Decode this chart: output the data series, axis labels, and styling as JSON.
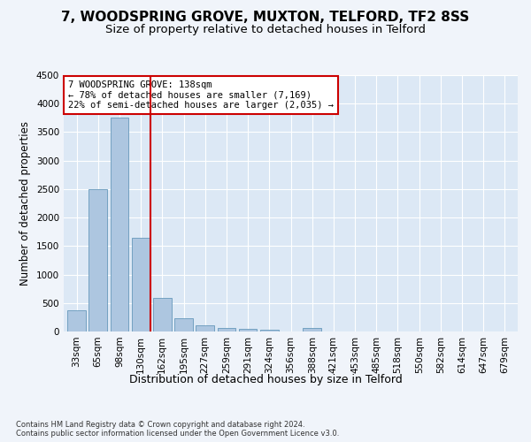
{
  "title1": "7, WOODSPRING GROVE, MUXTON, TELFORD, TF2 8SS",
  "title2": "Size of property relative to detached houses in Telford",
  "xlabel": "Distribution of detached houses by size in Telford",
  "ylabel": "Number of detached properties",
  "footnote": "Contains HM Land Registry data © Crown copyright and database right 2024.\nContains public sector information licensed under the Open Government Licence v3.0.",
  "categories": [
    "33sqm",
    "65sqm",
    "98sqm",
    "130sqm",
    "162sqm",
    "195sqm",
    "227sqm",
    "259sqm",
    "291sqm",
    "324sqm",
    "356sqm",
    "388sqm",
    "421sqm",
    "453sqm",
    "485sqm",
    "518sqm",
    "550sqm",
    "582sqm",
    "614sqm",
    "647sqm",
    "679sqm"
  ],
  "values": [
    370,
    2500,
    3750,
    1640,
    590,
    230,
    110,
    65,
    40,
    35,
    0,
    55,
    0,
    0,
    0,
    0,
    0,
    0,
    0,
    0,
    0
  ],
  "bar_color": "#adc6e0",
  "bar_edge_color": "#6699bb",
  "vline_color": "#cc0000",
  "vline_pos": 3.47,
  "annotation_text": "7 WOODSPRING GROVE: 138sqm\n← 78% of detached houses are smaller (7,169)\n22% of semi-detached houses are larger (2,035) →",
  "annotation_box_color": "#ffffff",
  "annotation_box_edge": "#cc0000",
  "ylim": [
    0,
    4500
  ],
  "yticks": [
    0,
    500,
    1000,
    1500,
    2000,
    2500,
    3000,
    3500,
    4000,
    4500
  ],
  "fig_bg_color": "#f0f4fa",
  "plot_bg": "#dce8f5",
  "title1_fontsize": 11,
  "title2_fontsize": 9.5,
  "xlabel_fontsize": 9,
  "ylabel_fontsize": 8.5,
  "tick_fontsize": 7.5,
  "footnote_fontsize": 6,
  "ann_fontsize": 7.5
}
